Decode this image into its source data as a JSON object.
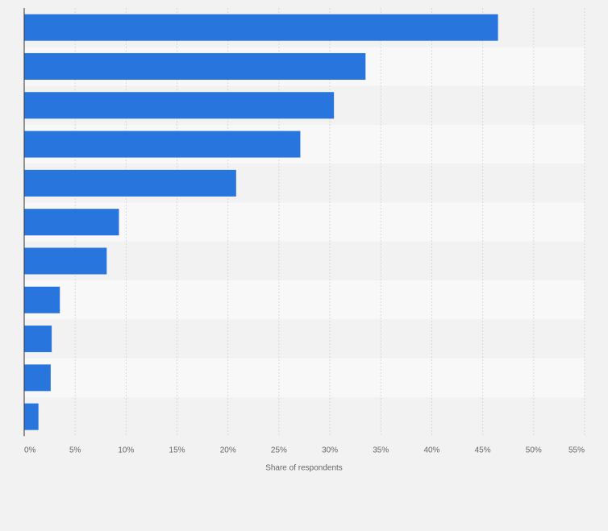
{
  "chart_data": {
    "type": "bar",
    "orientation": "horizontal",
    "title": "",
    "xlabel": "Share of respondents",
    "ylabel": "",
    "categories": [
      "",
      "",
      "",
      "",
      "",
      "",
      "",
      "",
      "",
      "",
      ""
    ],
    "values": [
      46.5,
      33.5,
      30.4,
      27.1,
      20.8,
      9.3,
      8.1,
      3.5,
      2.7,
      2.6,
      1.4
    ],
    "xlim": [
      0,
      55
    ],
    "tick_values": [
      0,
      5,
      10,
      15,
      20,
      25,
      30,
      35,
      40,
      45,
      50,
      55
    ],
    "tick_labels": [
      "0%",
      "5%",
      "10%",
      "15%",
      "20%",
      "25%",
      "30%",
      "35%",
      "40%",
      "45%",
      "50%",
      "55%"
    ],
    "grid": true,
    "legend": "none"
  },
  "colors": {
    "bar": "#2876dd",
    "band_dark": "#f2f2f2",
    "band_light": "#f8f8f8",
    "grid": "#d8d8d8",
    "axis": "#333333",
    "text": "#666666"
  }
}
